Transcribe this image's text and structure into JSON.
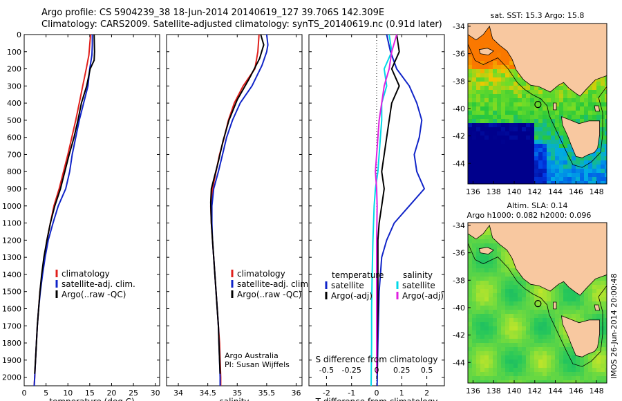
{
  "header": {
    "line1": "Argo profile: CS 5904239_38 18-Jun-2014 20140619_127 39.706S 142.309E",
    "line2": "Climatology: CARS2009. Satellite-adjusted climatology: synTS_20140619.nc (0.91d later)"
  },
  "colors": {
    "clim": "#e0201c",
    "sat": "#1024c8",
    "argo": "#000000",
    "s_sat": "#00d8e8",
    "s_argo": "#e020e0",
    "land": "#f8c8a0"
  },
  "chart_data": [
    {
      "type": "line",
      "name": "temperature-panel",
      "xlabel": "temperature (deg C)",
      "ylabel": "",
      "xlim": [
        0,
        31
      ],
      "ylim": [
        2050,
        0
      ],
      "xticks": [
        0,
        5,
        10,
        15,
        20,
        25,
        30
      ],
      "yticks": [
        0,
        100,
        200,
        300,
        400,
        500,
        600,
        700,
        800,
        900,
        1000,
        1100,
        1200,
        1300,
        1400,
        1500,
        1600,
        1700,
        1800,
        1900,
        2000
      ],
      "legend": [
        "climatology",
        "satellite-adj. clim.",
        "Argo(..raw -QC)"
      ],
      "legend_placement": "lower-center",
      "series": [
        {
          "name": "climatology",
          "color": "clim",
          "points": [
            [
              15.2,
              0
            ],
            [
              15.0,
              60
            ],
            [
              14.8,
              120
            ],
            [
              14.2,
              200
            ],
            [
              13.4,
              300
            ],
            [
              12.6,
              400
            ],
            [
              11.8,
              500
            ],
            [
              10.9,
              600
            ],
            [
              10.0,
              700
            ],
            [
              9.0,
              800
            ],
            [
              8.0,
              900
            ],
            [
              6.8,
              1000
            ],
            [
              6.0,
              1100
            ],
            [
              5.2,
              1200
            ],
            [
              4.6,
              1300
            ],
            [
              4.1,
              1400
            ],
            [
              3.6,
              1500
            ],
            [
              3.3,
              1600
            ],
            [
              3.0,
              1700
            ],
            [
              2.8,
              1800
            ],
            [
              2.6,
              1900
            ],
            [
              2.4,
              2000
            ],
            [
              2.3,
              2050
            ]
          ]
        },
        {
          "name": "satellite-adj. clim.",
          "color": "sat",
          "points": [
            [
              15.6,
              0
            ],
            [
              15.6,
              60
            ],
            [
              15.5,
              120
            ],
            [
              15.0,
              200
            ],
            [
              14.6,
              300
            ],
            [
              13.6,
              400
            ],
            [
              12.6,
              500
            ],
            [
              11.8,
              600
            ],
            [
              11.0,
              700
            ],
            [
              10.4,
              800
            ],
            [
              9.5,
              900
            ],
            [
              7.8,
              1000
            ],
            [
              6.6,
              1100
            ],
            [
              5.5,
              1200
            ],
            [
              4.8,
              1300
            ],
            [
              4.2,
              1400
            ],
            [
              3.7,
              1500
            ],
            [
              3.3,
              1600
            ],
            [
              3.0,
              1700
            ],
            [
              2.8,
              1800
            ],
            [
              2.6,
              1900
            ],
            [
              2.4,
              2000
            ],
            [
              2.3,
              2050
            ]
          ]
        },
        {
          "name": "Argo(..raw -QC)",
          "color": "argo",
          "points": [
            [
              16.0,
              0
            ],
            [
              16.1,
              100
            ],
            [
              16.0,
              150
            ],
            [
              15.1,
              200
            ],
            [
              14.3,
              300
            ],
            [
              13.1,
              400
            ],
            [
              12.3,
              500
            ],
            [
              11.4,
              600
            ],
            [
              10.3,
              700
            ],
            [
              9.3,
              800
            ],
            [
              8.3,
              900
            ],
            [
              7.0,
              1000
            ],
            [
              6.0,
              1100
            ],
            [
              5.2,
              1200
            ],
            [
              4.5,
              1300
            ],
            [
              4.0,
              1400
            ],
            [
              3.6,
              1500
            ],
            [
              3.3,
              1600
            ],
            [
              3.0,
              1700
            ],
            [
              2.8,
              1800
            ],
            [
              2.6,
              1900
            ],
            [
              2.4,
              1980
            ]
          ]
        }
      ]
    },
    {
      "type": "line",
      "name": "salinity-panel",
      "xlabel": "salinity",
      "ylabel": "",
      "xlim": [
        33.8,
        36.1
      ],
      "ylim": [
        2050,
        0
      ],
      "xticks": [
        34,
        34.5,
        35,
        35.5,
        36
      ],
      "legend": [
        "climatology",
        "satellite-adj. clim.",
        "Argo(..raw -QC)"
      ],
      "legend_placement": "lower-right",
      "annotation": [
        "Argo Australia",
        "PI: Susan Wijffels"
      ],
      "series": [
        {
          "name": "climatology",
          "color": "clim",
          "points": [
            [
              35.37,
              0
            ],
            [
              35.35,
              100
            ],
            [
              35.3,
              200
            ],
            [
              35.1,
              300
            ],
            [
              34.95,
              400
            ],
            [
              34.85,
              500
            ],
            [
              34.78,
              600
            ],
            [
              34.7,
              700
            ],
            [
              34.64,
              800
            ],
            [
              34.58,
              900
            ],
            [
              34.55,
              1000
            ],
            [
              34.56,
              1100
            ],
            [
              34.58,
              1200
            ],
            [
              34.6,
              1300
            ],
            [
              34.62,
              1400
            ],
            [
              34.64,
              1500
            ],
            [
              34.66,
              1600
            ],
            [
              34.68,
              1700
            ],
            [
              34.7,
              1800
            ],
            [
              34.71,
              1900
            ],
            [
              34.72,
              2000
            ],
            [
              34.72,
              2050
            ]
          ]
        },
        {
          "name": "satellite-adj. clim.",
          "color": "sat",
          "points": [
            [
              35.5,
              0
            ],
            [
              35.52,
              60
            ],
            [
              35.5,
              100
            ],
            [
              35.42,
              180
            ],
            [
              35.25,
              300
            ],
            [
              35.05,
              400
            ],
            [
              34.92,
              500
            ],
            [
              34.82,
              600
            ],
            [
              34.75,
              700
            ],
            [
              34.68,
              800
            ],
            [
              34.6,
              900
            ],
            [
              34.57,
              1000
            ],
            [
              34.57,
              1100
            ],
            [
              34.58,
              1200
            ],
            [
              34.6,
              1300
            ],
            [
              34.62,
              1400
            ],
            [
              34.64,
              1500
            ],
            [
              34.66,
              1600
            ],
            [
              34.68,
              1700
            ],
            [
              34.69,
              1800
            ],
            [
              34.7,
              1900
            ],
            [
              34.71,
              2000
            ],
            [
              34.71,
              2050
            ]
          ]
        },
        {
          "name": "Argo(..raw -QC)",
          "color": "argo",
          "points": [
            [
              35.4,
              0
            ],
            [
              35.45,
              60
            ],
            [
              35.38,
              140
            ],
            [
              35.2,
              260
            ],
            [
              35.0,
              380
            ],
            [
              34.86,
              500
            ],
            [
              34.76,
              620
            ],
            [
              34.68,
              740
            ],
            [
              34.62,
              820
            ],
            [
              34.56,
              900
            ],
            [
              34.55,
              980
            ],
            [
              34.56,
              1100
            ],
            [
              34.58,
              1200
            ],
            [
              34.6,
              1300
            ],
            [
              34.62,
              1400
            ],
            [
              34.64,
              1500
            ],
            [
              34.66,
              1600
            ],
            [
              34.68,
              1700
            ],
            [
              34.69,
              1800
            ],
            [
              34.7,
              1900
            ],
            [
              34.71,
              1980
            ]
          ]
        }
      ]
    },
    {
      "type": "line",
      "name": "difference-panel",
      "xlabel": "T difference from climatology",
      "xlabel_top": "S difference from climatology",
      "xlim": [
        -2.7,
        2.7
      ],
      "ylim": [
        2050,
        0
      ],
      "xticks": [
        -2,
        -1,
        0,
        1,
        2
      ],
      "s_tick_labels": [
        "-0.5",
        "-0.25",
        "0",
        "0.25",
        "0.5"
      ],
      "legend_left_title": "temperature",
      "legend_right_title": "salinity",
      "legend": [
        "satellite",
        "Argo(-adj)",
        "satellite",
        "Argo(-adj)"
      ],
      "legend_placement": "lower-center",
      "series": [
        {
          "name": "T satellite",
          "color": "sat",
          "points": [
            [
              0.4,
              0
            ],
            [
              0.55,
              100
            ],
            [
              0.8,
              200
            ],
            [
              1.3,
              300
            ],
            [
              1.6,
              400
            ],
            [
              1.8,
              500
            ],
            [
              1.7,
              600
            ],
            [
              1.5,
              700
            ],
            [
              1.6,
              800
            ],
            [
              1.9,
              900
            ],
            [
              1.3,
              1000
            ],
            [
              0.7,
              1100
            ],
            [
              0.4,
              1200
            ],
            [
              0.2,
              1300
            ],
            [
              0.1,
              1500
            ],
            [
              0.05,
              1800
            ],
            [
              0.02,
              2050
            ]
          ]
        },
        {
          "name": "T Argo(-adj)",
          "color": "argo",
          "points": [
            [
              0.8,
              0
            ],
            [
              0.9,
              100
            ],
            [
              0.6,
              200
            ],
            [
              0.9,
              300
            ],
            [
              0.6,
              400
            ],
            [
              0.5,
              500
            ],
            [
              0.4,
              600
            ],
            [
              0.3,
              700
            ],
            [
              0.2,
              800
            ],
            [
              0.3,
              900
            ],
            [
              0.2,
              1000
            ],
            [
              0.1,
              1100
            ],
            [
              0.05,
              1200
            ],
            [
              0.05,
              1400
            ],
            [
              0.05,
              1600
            ],
            [
              0.02,
              1800
            ],
            [
              0.02,
              1980
            ]
          ]
        },
        {
          "name": "S satellite",
          "color": "s_sat",
          "points": [
            [
              0.5,
              0
            ],
            [
              0.6,
              100
            ],
            [
              0.3,
              200
            ],
            [
              0.4,
              300
            ],
            [
              0.2,
              400
            ],
            [
              0.2,
              500
            ],
            [
              0.15,
              600
            ],
            [
              0.1,
              700
            ],
            [
              0.05,
              800
            ],
            [
              -0.05,
              900
            ],
            [
              -0.1,
              1000
            ],
            [
              -0.15,
              1200
            ],
            [
              -0.18,
              1400
            ],
            [
              -0.2,
              1600
            ],
            [
              -0.2,
              1800
            ],
            [
              -0.22,
              2050
            ]
          ]
        },
        {
          "name": "S Argo(-adj)",
          "color": "s_argo",
          "points": [
            [
              0.8,
              0
            ],
            [
              0.6,
              100
            ],
            [
              0.5,
              200
            ],
            [
              0.3,
              300
            ],
            [
              0.2,
              400
            ],
            [
              0.1,
              500
            ],
            [
              0.05,
              600
            ],
            [
              0.0,
              700
            ],
            [
              -0.05,
              800
            ],
            [
              0.0,
              900
            ],
            [
              0.02,
              1000
            ],
            [
              0.0,
              1200
            ],
            [
              0.0,
              1400
            ],
            [
              0.0,
              1600
            ],
            [
              0.0,
              1800
            ],
            [
              0.0,
              1980
            ]
          ]
        }
      ]
    },
    {
      "type": "heatmap",
      "name": "sst-map",
      "title": "sat. SST: 15.3 Argo: 15.8",
      "xlim": [
        135.5,
        149
      ],
      "ylim": [
        -45.5,
        -33.8
      ],
      "xticks": [
        136,
        138,
        140,
        142,
        144,
        146,
        148
      ],
      "yticks": [
        -34,
        -36,
        -38,
        -40,
        -42,
        -44
      ],
      "marker": [
        142.309,
        -39.706
      ]
    },
    {
      "type": "heatmap",
      "name": "sla-map",
      "title": "Altim. SLA: 0.14",
      "subtitle": "Argo h1000: 0.082 h2000: 0.096",
      "xlim": [
        135.5,
        149
      ],
      "ylim": [
        -45.5,
        -33.8
      ],
      "xticks": [
        136,
        138,
        140,
        142,
        144,
        146,
        148
      ],
      "yticks": [
        -34,
        -36,
        -38,
        -40,
        -42,
        -44
      ],
      "marker": [
        142.309,
        -39.706
      ]
    }
  ],
  "stamp": "IMOS 26-Jun-2014 20:00:48"
}
